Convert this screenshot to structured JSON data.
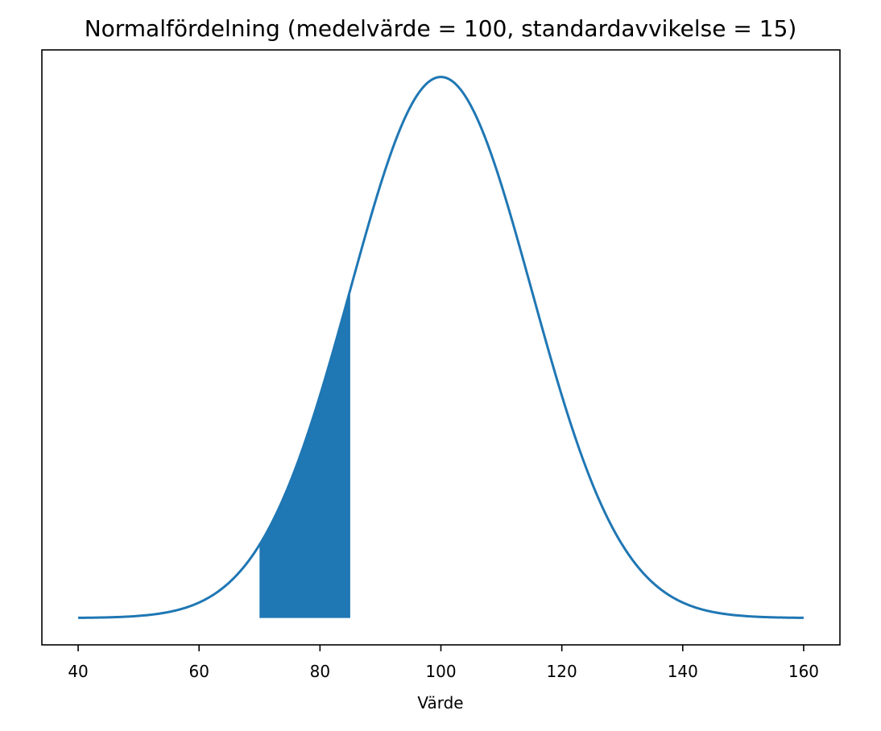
{
  "chart_data": {
    "type": "line",
    "title": "Normalfördelning (medelvärde = 100, standardavvikelse = 15)",
    "xlabel": "Värde",
    "ylabel": "",
    "xlim": [
      34,
      166
    ],
    "x_ticks": [
      40,
      60,
      80,
      100,
      120,
      140,
      160
    ],
    "x_tick_labels": [
      "40",
      "60",
      "80",
      "100",
      "120",
      "140",
      "160"
    ],
    "y_ticks_visible": false,
    "grid": false,
    "series": [
      {
        "distribution": "normal",
        "mean": 100,
        "std": 15,
        "x_range": [
          40,
          160
        ],
        "color": "#1f77b4"
      }
    ],
    "shaded_region": {
      "x_range": [
        70,
        85
      ],
      "color": "#1f77b4"
    }
  }
}
